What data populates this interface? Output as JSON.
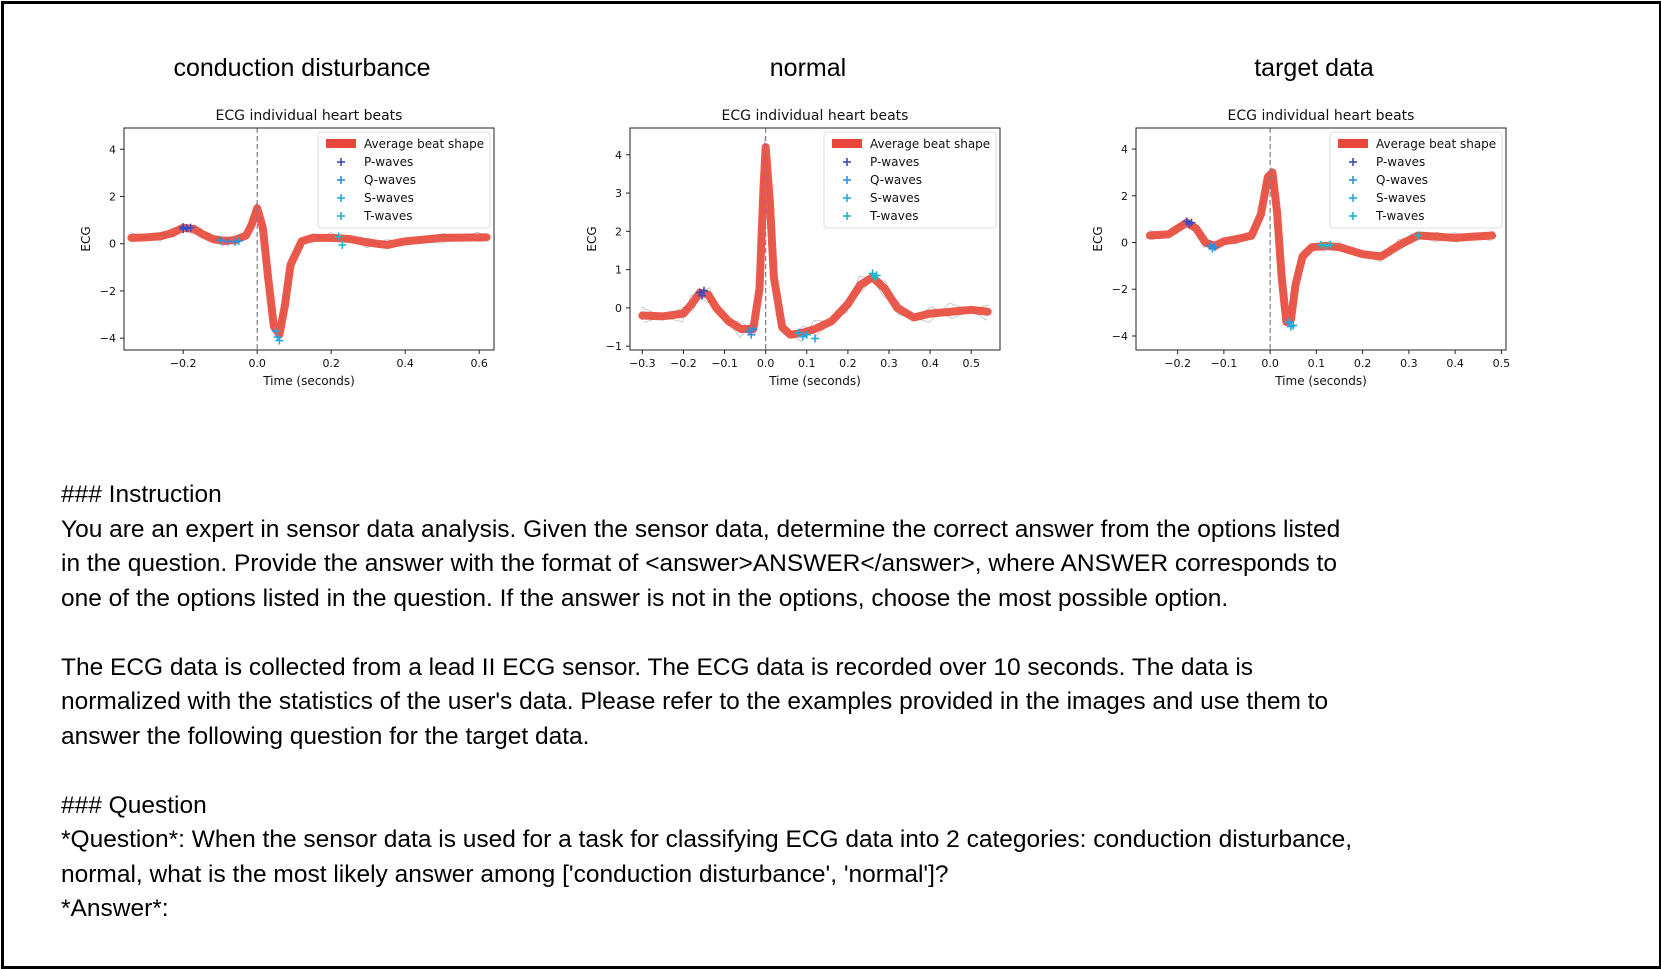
{
  "panels": [
    {
      "heading": "conduction disturbance",
      "chart_data": {
        "type": "line",
        "title": "ECG individual heart beats",
        "xlabel": "Time (seconds)",
        "ylabel": "ECG",
        "xlim": [
          -0.36,
          0.64
        ],
        "ylim": [
          -4.5,
          4.9
        ],
        "xticks": [
          -0.2,
          0.0,
          0.2,
          0.4,
          0.6
        ],
        "xtick_labels": [
          "−0.2",
          "0.0",
          "0.2",
          "0.4",
          "0.6"
        ],
        "yticks": [
          -4,
          -2,
          0,
          2,
          4
        ],
        "ytick_labels": [
          "−4",
          "−2",
          "0",
          "2",
          "4"
        ],
        "vline_x": 0.0,
        "legend": [
          "Average beat shape",
          "P-waves",
          "Q-waves",
          "S-waves",
          "T-waves"
        ],
        "legend_position": "top-right",
        "average_beat": {
          "x": [
            -0.34,
            -0.3,
            -0.26,
            -0.23,
            -0.2,
            -0.17,
            -0.15,
            -0.12,
            -0.09,
            -0.06,
            -0.03,
            -0.015,
            0.0,
            0.015,
            0.03,
            0.045,
            0.06,
            0.075,
            0.09,
            0.12,
            0.15,
            0.2,
            0.25,
            0.3,
            0.35,
            0.4,
            0.5,
            0.6,
            0.62
          ],
          "y": [
            0.25,
            0.27,
            0.32,
            0.45,
            0.68,
            0.62,
            0.42,
            0.2,
            0.12,
            0.15,
            0.35,
            0.8,
            1.5,
            0.7,
            -1.5,
            -3.5,
            -3.85,
            -2.6,
            -0.9,
            0.1,
            0.25,
            0.25,
            0.2,
            0.05,
            -0.05,
            0.1,
            0.25,
            0.27,
            0.27
          ]
        },
        "p_waves": {
          "x": [
            -0.2,
            -0.19,
            -0.18,
            -0.2
          ],
          "y": [
            0.7,
            0.65,
            0.68,
            0.62
          ]
        },
        "q_waves": {
          "x": [
            -0.1,
            -0.08,
            -0.06,
            -0.05
          ],
          "y": [
            0.15,
            0.1,
            0.08,
            0.12
          ]
        },
        "s_waves": {
          "x": [
            0.05,
            0.055,
            0.06
          ],
          "y": [
            -3.7,
            -3.95,
            -4.1
          ]
        },
        "t_waves": {
          "x": [
            0.23,
            0.22
          ],
          "y": [
            -0.05,
            0.3
          ]
        }
      }
    },
    {
      "heading": "normal",
      "chart_data": {
        "type": "line",
        "title": "ECG individual heart beats",
        "xlabel": "Time (seconds)",
        "ylabel": "ECG",
        "xlim": [
          -0.33,
          0.57
        ],
        "ylim": [
          -1.1,
          4.7
        ],
        "xticks": [
          -0.3,
          -0.2,
          -0.1,
          0.0,
          0.1,
          0.2,
          0.3,
          0.4,
          0.5
        ],
        "xtick_labels": [
          "−0.3",
          "−0.2",
          "−0.1",
          "0.0",
          "0.1",
          "0.2",
          "0.3",
          "0.4",
          "0.5"
        ],
        "yticks": [
          -1,
          0,
          1,
          2,
          3,
          4
        ],
        "ytick_labels": [
          "−1",
          "0",
          "1",
          "2",
          "3",
          "4"
        ],
        "vline_x": 0.0,
        "legend": [
          "Average beat shape",
          "P-waves",
          "Q-waves",
          "S-waves",
          "T-waves"
        ],
        "legend_position": "top-right",
        "average_beat": {
          "x": [
            -0.3,
            -0.25,
            -0.2,
            -0.18,
            -0.16,
            -0.14,
            -0.12,
            -0.09,
            -0.06,
            -0.03,
            -0.015,
            -0.005,
            0.0,
            0.01,
            0.02,
            0.04,
            0.06,
            0.09,
            0.12,
            0.16,
            0.2,
            0.23,
            0.26,
            0.29,
            0.32,
            0.36,
            0.4,
            0.45,
            0.5,
            0.54
          ],
          "y": [
            -0.2,
            -0.22,
            -0.15,
            0.1,
            0.4,
            0.35,
            0.0,
            -0.35,
            -0.55,
            -0.55,
            0.5,
            3.2,
            4.2,
            2.8,
            0.8,
            -0.5,
            -0.7,
            -0.65,
            -0.55,
            -0.35,
            0.1,
            0.6,
            0.8,
            0.5,
            0.0,
            -0.25,
            -0.15,
            -0.1,
            -0.05,
            -0.1
          ]
        },
        "p_waves": {
          "x": [
            -0.16,
            -0.15,
            -0.155
          ],
          "y": [
            0.4,
            0.45,
            0.32
          ]
        },
        "q_waves": {
          "x": [
            -0.04,
            -0.035,
            -0.03
          ],
          "y": [
            -0.6,
            -0.7,
            -0.55
          ]
        },
        "s_waves": {
          "x": [
            0.08,
            0.09,
            0.1,
            0.12
          ],
          "y": [
            -0.65,
            -0.75,
            -0.7,
            -0.8
          ]
        },
        "t_waves": {
          "x": [
            0.26,
            0.265,
            0.27
          ],
          "y": [
            0.9,
            0.8,
            0.85
          ]
        }
      }
    },
    {
      "heading": "target data",
      "chart_data": {
        "type": "line",
        "title": "ECG individual heart beats",
        "xlabel": "Time (seconds)",
        "ylabel": "ECG",
        "xlim": [
          -0.29,
          0.51
        ],
        "ylim": [
          -4.6,
          4.9
        ],
        "xticks": [
          -0.2,
          -0.1,
          0.0,
          0.1,
          0.2,
          0.3,
          0.4,
          0.5
        ],
        "xtick_labels": [
          "−0.2",
          "−0.1",
          "0.0",
          "0.1",
          "0.2",
          "0.3",
          "0.4",
          "0.5"
        ],
        "yticks": [
          -4,
          -2,
          0,
          2,
          4
        ],
        "ytick_labels": [
          "−4",
          "−2",
          "0",
          "2",
          "4"
        ],
        "vline_x": 0.0,
        "legend": [
          "Average beat shape",
          "P-waves",
          "Q-waves",
          "S-waves",
          "T-waves"
        ],
        "legend_position": "top-right",
        "average_beat": {
          "x": [
            -0.26,
            -0.22,
            -0.2,
            -0.18,
            -0.16,
            -0.14,
            -0.12,
            -0.1,
            -0.07,
            -0.04,
            -0.02,
            -0.005,
            0.005,
            0.015,
            0.025,
            0.035,
            0.045,
            0.055,
            0.07,
            0.09,
            0.12,
            0.15,
            0.2,
            0.24,
            0.28,
            0.32,
            0.36,
            0.4,
            0.44,
            0.48
          ],
          "y": [
            0.3,
            0.35,
            0.6,
            0.85,
            0.6,
            0.0,
            -0.15,
            0.05,
            0.15,
            0.3,
            1.2,
            2.8,
            3.0,
            1.3,
            -1.5,
            -3.4,
            -3.3,
            -1.8,
            -0.6,
            -0.2,
            -0.15,
            -0.2,
            -0.5,
            -0.6,
            -0.1,
            0.3,
            0.25,
            0.2,
            0.25,
            0.3
          ]
        },
        "p_waves": {
          "x": [
            -0.18,
            -0.175,
            -0.17
          ],
          "y": [
            0.9,
            0.8,
            0.85
          ]
        },
        "q_waves": {
          "x": [
            -0.13,
            -0.125,
            -0.12
          ],
          "y": [
            -0.15,
            -0.25,
            -0.2
          ]
        },
        "s_waves": {
          "x": [
            0.04,
            0.045,
            0.05
          ],
          "y": [
            -3.4,
            -3.6,
            -3.55
          ]
        },
        "t_waves": {
          "x": [
            0.11,
            0.12,
            0.13,
            0.32
          ],
          "y": [
            -0.1,
            -0.15,
            -0.1,
            0.3
          ]
        }
      }
    }
  ],
  "text": {
    "instruction_heading": "### Instruction",
    "instruction_line1": "You are an expert in sensor data analysis. Given the sensor data, determine the correct answer from the options listed",
    "instruction_line2": "in the question. Provide the answer with the format of <answer>ANSWER</answer>, where ANSWER corresponds to",
    "instruction_line3": "one of the options listed in the question. If the answer is not in the options, choose the most possible option.",
    "context_line1": "The ECG data is collected from a lead II ECG sensor. The ECG data is recorded over 10 seconds. The data is",
    "context_line2": "normalized with the statistics of the user's data. Please refer to the examples provided in the images and use them to",
    "context_line3": "answer the following question for the target data.",
    "question_heading": "### Question",
    "question_line1": "*Question*: When the sensor data is used for a task for classifying ECG data into 2 categories: conduction disturbance,",
    "question_line2": "normal, what is the most likely answer among ['conduction disturbance', 'normal']?",
    "answer_label": "*Answer*:"
  },
  "colors": {
    "average_beat": "#e8483a",
    "p_wave": "#3b4cc0",
    "q_wave": "#2e8fd8",
    "s_wave": "#23a8e0",
    "t_wave": "#20b6c9",
    "raw_beats": "#c8c8c8",
    "vline": "#7f7f7f"
  }
}
